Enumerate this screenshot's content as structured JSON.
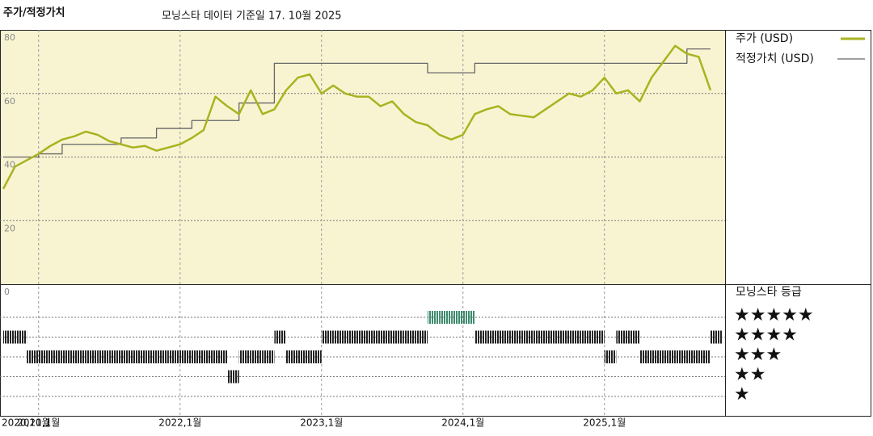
{
  "chart_data": {
    "type": "line",
    "title": "주가/적정가치",
    "subtitle": "모닝스타 데이터 기준일 17. 10월 2025",
    "x": [
      "2020-10",
      "2020-11",
      "2020-12",
      "2021-01",
      "2021-02",
      "2021-03",
      "2021-04",
      "2021-05",
      "2021-06",
      "2021-07",
      "2021-08",
      "2021-09",
      "2021-10",
      "2021-11",
      "2021-12",
      "2022-01",
      "2022-02",
      "2022-03",
      "2022-04",
      "2022-05",
      "2022-06",
      "2022-07",
      "2022-08",
      "2022-09",
      "2022-10",
      "2022-11",
      "2022-12",
      "2023-01",
      "2023-02",
      "2023-03",
      "2023-04",
      "2023-05",
      "2023-06",
      "2023-07",
      "2023-08",
      "2023-09",
      "2023-10",
      "2023-11",
      "2023-12",
      "2024-01",
      "2024-02",
      "2024-03",
      "2024-04",
      "2024-05",
      "2024-06",
      "2024-07",
      "2024-08",
      "2024-09",
      "2024-10",
      "2024-11",
      "2024-12",
      "2025-01",
      "2025-02",
      "2025-03",
      "2025-04",
      "2025-05",
      "2025-06",
      "2025-07",
      "2025-08",
      "2025-09",
      "2025-10"
    ],
    "series": [
      {
        "name": "주가 (USD)",
        "color": "#a9b320",
        "values": [
          30,
          37,
          39,
          41,
          43.5,
          45.5,
          46.5,
          48,
          47,
          45,
          44,
          43,
          43.5,
          42,
          43,
          44,
          46,
          48.5,
          59,
          56,
          53.5,
          61,
          53.5,
          55,
          61,
          65,
          66,
          60,
          62.5,
          60,
          59,
          59,
          56,
          57.5,
          53.5,
          51,
          50,
          47,
          45.5,
          47,
          53.5,
          55,
          56,
          53.5,
          53,
          52.5,
          55,
          57.5,
          60,
          59,
          61,
          65,
          60,
          61,
          57.5,
          65,
          70,
          75,
          72.5,
          71.5,
          61
        ]
      },
      {
        "name": "적정가치 (USD)",
        "color": "#666666",
        "step": true,
        "values": [
          40,
          40,
          40,
          41,
          41,
          44,
          44,
          44,
          44,
          44,
          46,
          46,
          46,
          49,
          49,
          49,
          51.5,
          51.5,
          51.5,
          51.5,
          57,
          57,
          57,
          69.5,
          69.5,
          69.5,
          69.5,
          69.5,
          69.5,
          69.5,
          69.5,
          69.5,
          69.5,
          69.5,
          69.5,
          69.5,
          66.5,
          66.5,
          66.5,
          66.5,
          69.5,
          69.5,
          69.5,
          69.5,
          69.5,
          69.5,
          69.5,
          69.5,
          69.5,
          69.5,
          69.5,
          69.5,
          69.5,
          69.5,
          69.5,
          69.5,
          69.5,
          69.5,
          74,
          74,
          74
        ]
      }
    ],
    "ylim": [
      0,
      80
    ],
    "yticks": [
      0,
      20,
      40,
      60,
      80
    ],
    "xticks": [
      {
        "value": "2020-10",
        "label": "2020,10월"
      },
      {
        "value": "2021-01",
        "label": "2021,1월"
      },
      {
        "value": "2022-01",
        "label": "2022,1월"
      },
      {
        "value": "2023-01",
        "label": "2023,1월"
      },
      {
        "value": "2024-01",
        "label": "2024,1월"
      },
      {
        "value": "2025-01",
        "label": "2025,1월"
      }
    ],
    "grid": true,
    "background": "#f8f4d2",
    "ratings": {
      "name": "모닝스타 등급",
      "labels": [
        "★",
        "★★",
        "★★★",
        "★★★★",
        "★★★★★"
      ],
      "colors": [
        "#222222",
        "#222222",
        "#222222",
        "#222222",
        "#3d8b6d"
      ],
      "values": [
        4,
        4,
        3,
        3,
        3,
        3,
        3,
        3,
        3,
        3,
        3,
        3,
        3,
        3,
        3,
        3,
        3,
        3,
        3,
        2,
        3,
        3,
        3,
        4,
        3,
        3,
        3,
        4,
        4,
        4,
        4,
        4,
        4,
        4,
        4,
        4,
        5,
        5,
        5,
        5,
        4,
        4,
        4,
        4,
        4,
        4,
        4,
        4,
        4,
        4,
        4,
        3,
        4,
        4,
        3,
        3,
        3,
        3,
        3,
        3,
        4
      ]
    }
  }
}
